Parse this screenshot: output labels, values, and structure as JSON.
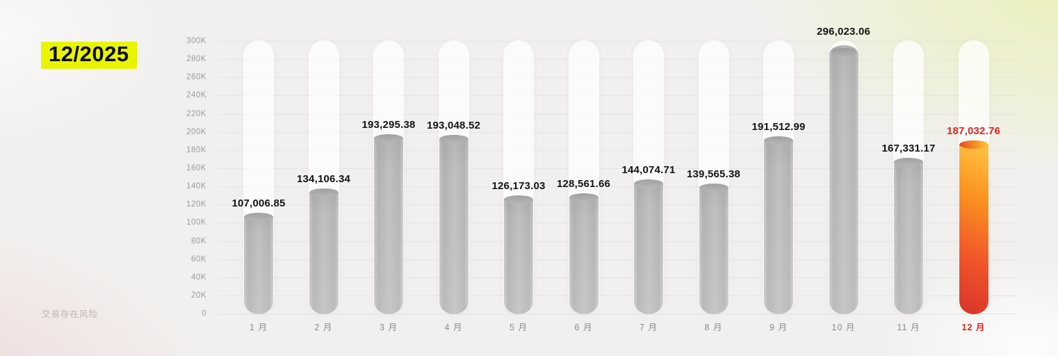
{
  "page": {
    "title": "12/2025",
    "footer_note": "交易存在风险"
  },
  "chart_data": {
    "type": "bar",
    "title": "12/2025",
    "categories": [
      "1 月",
      "2 月",
      "3 月",
      "4 月",
      "5 月",
      "6 月",
      "7 月",
      "8 月",
      "9 月",
      "10 月",
      "11 月",
      "12 月"
    ],
    "values": [
      107006.85,
      134106.34,
      193295.38,
      193048.52,
      126173.03,
      128561.66,
      144074.71,
      139565.38,
      191512.99,
      296023.06,
      167331.17,
      187032.76
    ],
    "value_labels": [
      "107,006.85",
      "134,106.34",
      "193,295.38",
      "193,048.52",
      "126,173.03",
      "128,561.66",
      "144,074.71",
      "139,565.38",
      "191,512.99",
      "296,023.06",
      "167,331.17",
      "187,032.76"
    ],
    "xlabel": "",
    "ylabel": "",
    "ylim": [
      0,
      300000
    ],
    "ytick_step": 20000,
    "ytick_labels": [
      "0",
      "20K",
      "40K",
      "60K",
      "80K",
      "100K",
      "120K",
      "140K",
      "160K",
      "180K",
      "200K",
      "220K",
      "240K",
      "260K",
      "280K",
      "300K"
    ],
    "grid": true,
    "legend": false,
    "highlight_index": 11,
    "colors": {
      "title_highlight_bg": "#e9f402",
      "bar_default": "#c0c0be",
      "bar_highlight_top": "#ffc445",
      "bar_highlight_bottom": "#d9332b",
      "value_label": "#141414",
      "value_label_highlight": "#e5231f",
      "axis_label": "#9b9b9b",
      "month_label": "#8a8a8a",
      "month_label_highlight": "#e5231f",
      "grid_line": "#e4e4e2",
      "track": "rgba(255,255,255,0.72)"
    }
  }
}
